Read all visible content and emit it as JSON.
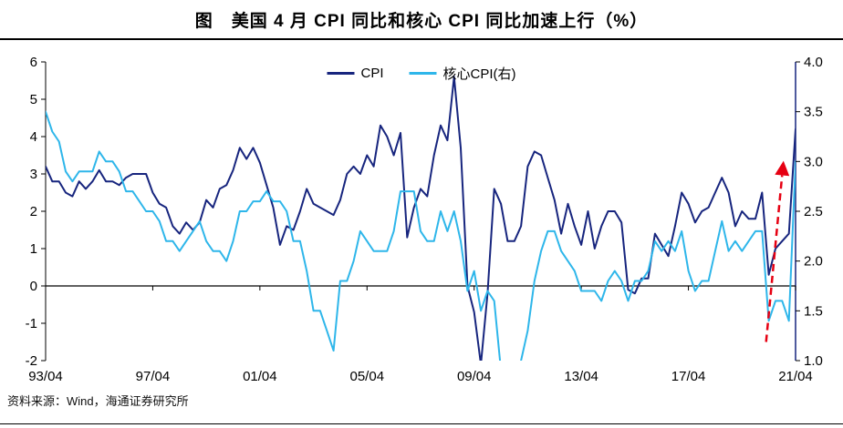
{
  "title": "图　美国 4 月 CPI 同比和核心 CPI 同比加速上行（%）",
  "source": "资料来源：Wind，海通证券研究所",
  "legend": [
    {
      "label": "CPI",
      "color": "#17257E"
    },
    {
      "label": "核心CPI(右)",
      "color": "#2EB6EA"
    }
  ],
  "chart_data": {
    "type": "line",
    "title": "美国4月CPI同比和核心CPI同比加速上行（%）",
    "xlabel": "",
    "ylabel": "",
    "x_start": 1993.25,
    "x_step": 0.25,
    "x_tick_labels": [
      "93/04",
      "97/04",
      "01/04",
      "05/04",
      "09/04",
      "13/04",
      "17/04",
      "21/04"
    ],
    "x_tick_positions": [
      1993.25,
      1997.25,
      2001.25,
      2005.25,
      2009.25,
      2013.25,
      2017.25,
      2021.25
    ],
    "left_axis": {
      "min": -2,
      "max": 6,
      "ticks": [
        6,
        5,
        4,
        3,
        2,
        1,
        0,
        -1,
        -2
      ]
    },
    "right_axis": {
      "min": 1.0,
      "max": 4.0,
      "ticks": [
        "4.0",
        "3.5",
        "3.0",
        "2.5",
        "2.0",
        "1.5",
        "1.0"
      ]
    },
    "legend_position": "top-center",
    "grid": false,
    "series": [
      {
        "name": "CPI",
        "id": "cpi-line",
        "axis": "left",
        "color": "#17257E",
        "values": [
          3.2,
          2.8,
          2.8,
          2.5,
          2.4,
          2.8,
          2.6,
          2.8,
          3.1,
          2.8,
          2.8,
          2.7,
          2.9,
          3.0,
          3.0,
          3.0,
          2.5,
          2.2,
          2.1,
          1.6,
          1.4,
          1.7,
          1.5,
          1.7,
          2.3,
          2.1,
          2.6,
          2.7,
          3.1,
          3.7,
          3.4,
          3.7,
          3.3,
          2.7,
          2.1,
          1.1,
          1.6,
          1.5,
          2.0,
          2.6,
          2.2,
          2.1,
          2.0,
          1.9,
          2.3,
          3.0,
          3.2,
          3.0,
          3.5,
          3.2,
          4.3,
          4.0,
          3.5,
          4.1,
          1.3,
          2.1,
          2.6,
          2.4,
          3.5,
          4.3,
          3.9,
          5.6,
          3.7,
          0.0,
          -0.7,
          -2.1,
          -0.2,
          2.6,
          2.2,
          1.2,
          1.2,
          1.6,
          3.2,
          3.6,
          3.5,
          2.9,
          2.3,
          1.4,
          2.2,
          1.6,
          1.1,
          2.0,
          1.0,
          1.6,
          2.0,
          2.0,
          1.7,
          -0.1,
          -0.2,
          0.2,
          0.2,
          1.4,
          1.1,
          0.8,
          1.6,
          2.5,
          2.2,
          1.7,
          2.0,
          2.1,
          2.5,
          2.9,
          2.5,
          1.6,
          2.0,
          1.8,
          1.8,
          2.5,
          0.3,
          1.0,
          1.2,
          1.4,
          4.2
        ]
      },
      {
        "name": "核心CPI(右)",
        "id": "core-cpi-line",
        "axis": "right",
        "color": "#2EB6EA",
        "values": [
          3.5,
          3.3,
          3.2,
          2.9,
          2.8,
          2.9,
          2.9,
          2.9,
          3.1,
          3.0,
          3.0,
          2.9,
          2.7,
          2.7,
          2.6,
          2.5,
          2.5,
          2.4,
          2.2,
          2.2,
          2.1,
          2.2,
          2.3,
          2.4,
          2.2,
          2.1,
          2.1,
          2.0,
          2.2,
          2.5,
          2.5,
          2.6,
          2.6,
          2.7,
          2.6,
          2.6,
          2.5,
          2.2,
          2.2,
          1.9,
          1.5,
          1.5,
          1.3,
          1.1,
          1.8,
          1.8,
          2.0,
          2.3,
          2.2,
          2.1,
          2.1,
          2.1,
          2.3,
          2.7,
          2.7,
          2.7,
          2.3,
          2.2,
          2.2,
          2.5,
          2.3,
          2.5,
          2.2,
          1.7,
          1.9,
          1.5,
          1.7,
          1.6,
          0.9,
          0.9,
          0.6,
          1.0,
          1.3,
          1.8,
          2.1,
          2.3,
          2.3,
          2.1,
          2.0,
          1.9,
          1.7,
          1.7,
          1.7,
          1.6,
          1.8,
          1.9,
          1.8,
          1.6,
          1.8,
          1.8,
          1.9,
          2.2,
          2.1,
          2.2,
          2.1,
          2.3,
          1.9,
          1.7,
          1.8,
          1.8,
          2.1,
          2.4,
          2.1,
          2.2,
          2.1,
          2.2,
          2.3,
          2.3,
          1.4,
          1.6,
          1.6,
          1.4,
          3.0
        ]
      }
    ],
    "annotation_arrow": {
      "x1": 2020.15,
      "y1": -1.5,
      "x2": 2020.8,
      "y2": 3.35,
      "color": "#E60012",
      "style": "dashed"
    }
  }
}
